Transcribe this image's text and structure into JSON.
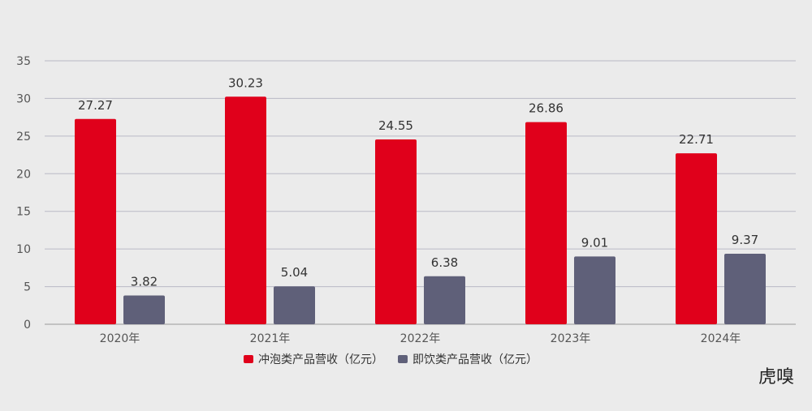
{
  "chart_data": {
    "type": "bar",
    "categories": [
      "2020年",
      "2021年",
      "2022年",
      "2023年",
      "2024年"
    ],
    "series": [
      {
        "name": "冲泡类产品营收（亿元）",
        "color": "#e0001b",
        "values": [
          27.27,
          30.23,
          24.55,
          26.86,
          22.71
        ]
      },
      {
        "name": "即饮类产品营收（亿元）",
        "color": "#5f6079",
        "values": [
          3.82,
          5.04,
          6.38,
          9.01,
          9.37
        ]
      }
    ],
    "ylim": [
      0,
      35
    ],
    "yticks": [
      0,
      5,
      10,
      15,
      20,
      25,
      30,
      35
    ],
    "grid": true,
    "legend": "bottom-center",
    "title": "",
    "xlabel": "",
    "ylabel": ""
  },
  "watermark": "虎嗅"
}
